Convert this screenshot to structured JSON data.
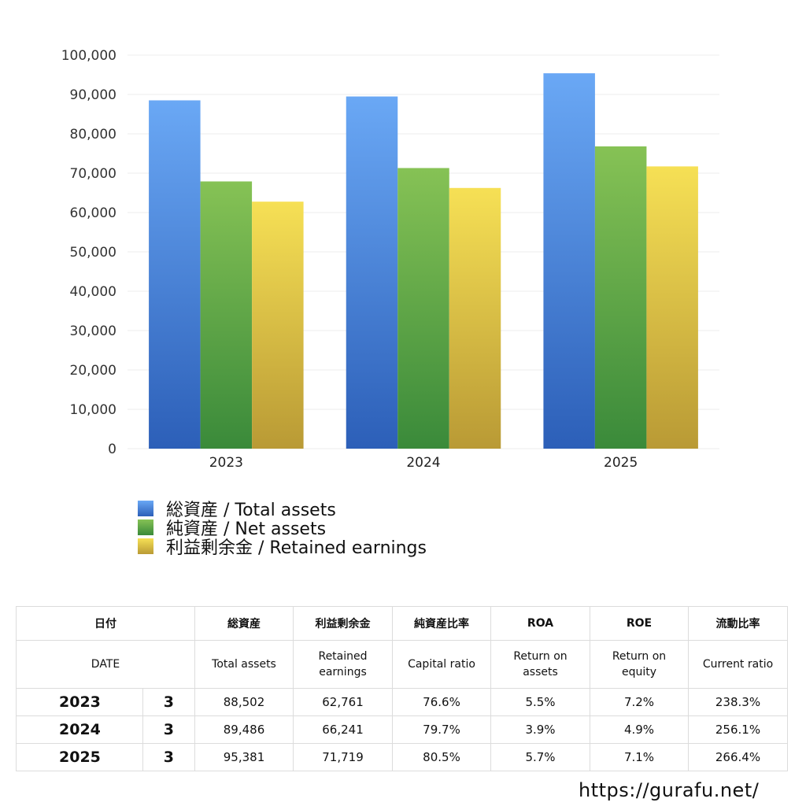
{
  "chart_data": {
    "type": "bar",
    "categories": [
      "2023",
      "2024",
      "2025"
    ],
    "series": [
      {
        "name": "総資産 / Total assets",
        "values": [
          88502,
          89486,
          95381
        ],
        "color_top": "#6aa8f5",
        "color_bottom": "#2c5fb8"
      },
      {
        "name": "純資産 / Net assets",
        "values": [
          67900,
          71300,
          76800
        ],
        "color_top": "#86c255",
        "color_bottom": "#3a8a3a"
      },
      {
        "name": "利益剰余金 / Retained earnings",
        "values": [
          62761,
          66241,
          71719
        ],
        "color_top": "#f6e055",
        "color_bottom": "#b99a35"
      }
    ],
    "ylim": [
      0,
      100000
    ],
    "yticks": [
      "0",
      "10,000",
      "20,000",
      "30,000",
      "40,000",
      "50,000",
      "60,000",
      "70,000",
      "80,000",
      "90,000",
      "100,000"
    ],
    "grid": true,
    "legend_position": "bottom-left"
  },
  "table": {
    "header_jp": {
      "date": "日付",
      "total_assets": "総資産",
      "retained_earnings": "利益剰余金",
      "capital_ratio": "純資産比率",
      "roa": "ROA",
      "roe": "ROE",
      "current_ratio": "流動比率"
    },
    "header_en": {
      "date": "DATE",
      "total_assets": "Total assets",
      "retained_earnings_1": "Retained",
      "retained_earnings_2": "earnings",
      "capital_ratio": "Capital ratio",
      "roa_1": "Return on",
      "roa_2": "assets",
      "roe_1": "Return on",
      "roe_2": "equity",
      "current_ratio": "Current ratio"
    },
    "rows": [
      {
        "year": "2023",
        "month": "3",
        "total_assets": "88,502",
        "retained_earnings": "62,761",
        "capital_ratio": "76.6%",
        "roa": "5.5%",
        "roe": "7.2%",
        "current_ratio": "238.3%"
      },
      {
        "year": "2024",
        "month": "3",
        "total_assets": "89,486",
        "retained_earnings": "66,241",
        "capital_ratio": "79.7%",
        "roa": "3.9%",
        "roe": "4.9%",
        "current_ratio": "256.1%"
      },
      {
        "year": "2025",
        "month": "3",
        "total_assets": "95,381",
        "retained_earnings": "71,719",
        "capital_ratio": "80.5%",
        "roa": "5.7%",
        "roe": "7.1%",
        "current_ratio": "266.4%"
      }
    ]
  },
  "footer": {
    "url": "https://gurafu.net/"
  }
}
